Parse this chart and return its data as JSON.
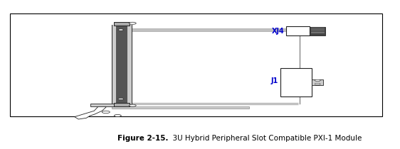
{
  "fig_width": 5.62,
  "fig_height": 2.1,
  "dpi": 100,
  "background_color": "#ffffff",
  "border_color": "#000000",
  "gray_line": "#c0c0c0",
  "dark": "#222222",
  "mid_gray": "#888888",
  "light_gray": "#cccccc",
  "caption_bold": "Figure 2-15.",
  "caption_normal": "  3U Hybrid Peripheral Slot Compatible PXI-1 Module",
  "caption_fontsize": 7.5,
  "label_xj4": "XJ4",
  "label_j1": "J1",
  "label_blue": "#0000cc",
  "label_red": "#cc0000"
}
